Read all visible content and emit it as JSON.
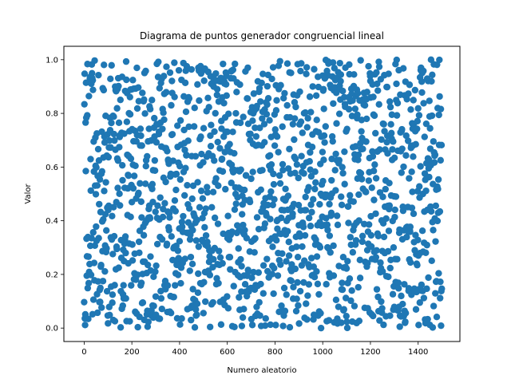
{
  "chart_data": {
    "type": "scatter",
    "title": "Diagrama de puntos generador congruencial lineal",
    "xlabel": "Numero aleatorio",
    "ylabel": "Valor",
    "xlim": [
      -85,
      1575
    ],
    "ylim": [
      -0.05,
      1.05
    ],
    "x_ticks": [
      "0",
      "200",
      "400",
      "600",
      "800",
      "1000",
      "1200",
      "1400"
    ],
    "y_ticks": [
      "0.0",
      "0.2",
      "0.4",
      "0.6",
      "0.8",
      "1.0"
    ],
    "grid": false,
    "legend": "none",
    "marker_color": "#1f77b4",
    "series": [
      {
        "point_count": 1500,
        "x_range": [
          0,
          1499
        ],
        "y_range": [
          0,
          1
        ],
        "distribution": "uniform pseudo-random sequence covering the full [0, 1] range at every x"
      }
    ]
  }
}
